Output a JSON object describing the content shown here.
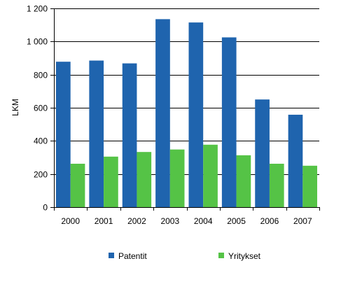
{
  "chart_data": {
    "type": "bar",
    "title": "",
    "xlabel": "",
    "ylabel": "LKM",
    "categories": [
      "2000",
      "2001",
      "2002",
      "2003",
      "2004",
      "2005",
      "2006",
      "2007"
    ],
    "series": [
      {
        "name": "Patentit",
        "color": "#1F64AE",
        "values": [
          878,
          885,
          868,
          1135,
          1115,
          1025,
          650,
          558
        ]
      },
      {
        "name": "Yritykset",
        "color": "#55C346",
        "values": [
          262,
          305,
          333,
          348,
          377,
          313,
          262,
          250
        ]
      }
    ],
    "ylim": [
      0,
      1200
    ],
    "yticks": [
      {
        "value": 0,
        "label": "0"
      },
      {
        "value": 200,
        "label": "200"
      },
      {
        "value": 400,
        "label": "400"
      },
      {
        "value": 600,
        "label": "600"
      },
      {
        "value": 800,
        "label": "800"
      },
      {
        "value": 1000,
        "label": "1 000"
      },
      {
        "value": 1200,
        "label": "1 200"
      }
    ],
    "grid": true,
    "legend_position": "bottom"
  }
}
